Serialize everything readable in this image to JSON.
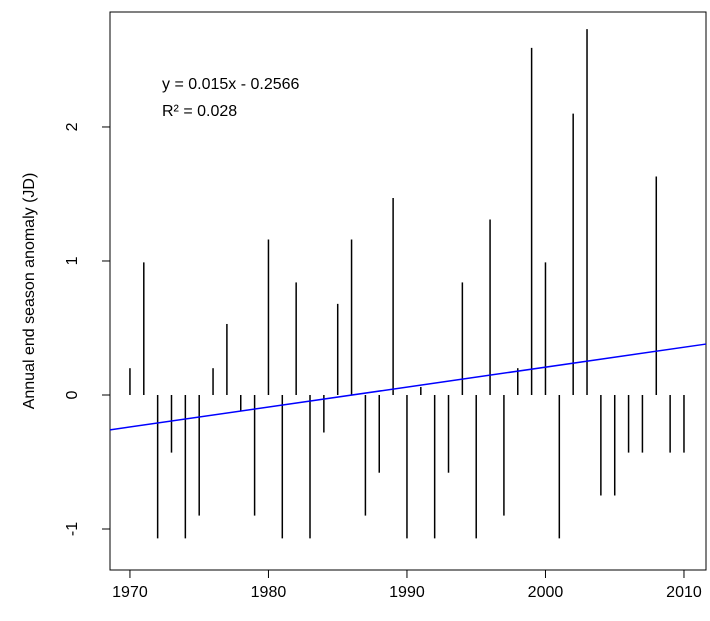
{
  "chart_data": {
    "type": "needle",
    "y_label": "Annual end season anomaly (JD)",
    "annotations": [
      "y = 0.015x - 0.2566",
      "R² = 0.028"
    ],
    "x": [
      1970,
      1971,
      1972,
      1973,
      1974,
      1975,
      1976,
      1977,
      1978,
      1979,
      1980,
      1981,
      1982,
      1983,
      1984,
      1985,
      1986,
      1987,
      1988,
      1989,
      1990,
      1991,
      1992,
      1993,
      1994,
      1995,
      1996,
      1997,
      1998,
      1999,
      2000,
      2001,
      2002,
      2003,
      2004,
      2005,
      2006,
      2007,
      2008,
      2009,
      2010
    ],
    "values": [
      0.2,
      0.99,
      -1.07,
      -0.43,
      -1.07,
      -0.9,
      0.2,
      0.53,
      -0.12,
      -0.9,
      1.16,
      -1.07,
      0.84,
      -1.07,
      -0.28,
      0.68,
      1.16,
      -0.9,
      -0.58,
      1.47,
      -1.07,
      0.06,
      -1.07,
      -0.58,
      0.84,
      -1.07,
      1.31,
      -0.9,
      0.2,
      2.59,
      0.99,
      -1.07,
      2.1,
      2.73,
      -0.75,
      -0.75,
      -0.43,
      -0.43,
      1.63,
      -0.43,
      -0.43
    ],
    "color": "#000000",
    "trend_line": {
      "x": [
        1968.56,
        2011.59
      ],
      "values": [
        -0.26,
        0.38
      ],
      "color": "#0000ff"
    },
    "xlim": [
      1968.56,
      2011.59
    ],
    "ylim": [
      -1.306,
      2.858
    ],
    "xticks": [
      1970,
      1980,
      1990,
      2000,
      2010
    ],
    "yticks": [
      -1,
      0,
      1,
      2
    ]
  }
}
